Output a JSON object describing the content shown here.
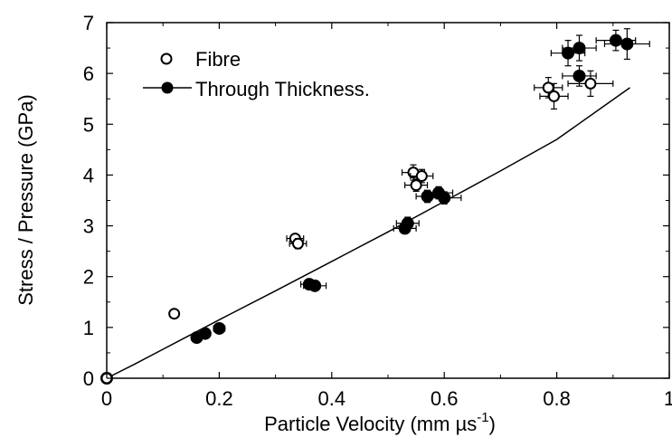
{
  "chart_data": {
    "type": "scatter",
    "xlabel": "Particle Velocity (mm µs",
    "xlabel_sup": "-1",
    "xlabel_close": ")",
    "ylabel": "Stress / Pressure (GPa)",
    "xlim": [
      0,
      1
    ],
    "ylim": [
      0,
      7
    ],
    "xticks": [
      0,
      0.2,
      0.4,
      0.6,
      0.8,
      1
    ],
    "xtick_labels": [
      "0",
      "0.2",
      "0.4",
      "0.6",
      "0.8",
      "1"
    ],
    "yticks": [
      0,
      1,
      2,
      3,
      4,
      5,
      6,
      7
    ],
    "ytick_labels": [
      "0",
      "1",
      "2",
      "3",
      "4",
      "5",
      "6",
      "7"
    ],
    "grid": false,
    "legend_position": "top-left",
    "series": [
      {
        "name": "Fibre",
        "marker": "open-circle",
        "points": [
          {
            "x": 0.0,
            "y": 0.0,
            "xerr": 0,
            "yerr": 0
          },
          {
            "x": 0.12,
            "y": 1.27,
            "xerr": 0,
            "yerr": 0
          },
          {
            "x": 0.335,
            "y": 2.75,
            "xerr": 0.015,
            "yerr": 0.07
          },
          {
            "x": 0.34,
            "y": 2.65,
            "xerr": 0.015,
            "yerr": 0.1
          },
          {
            "x": 0.545,
            "y": 4.05,
            "xerr": 0.02,
            "yerr": 0.15
          },
          {
            "x": 0.56,
            "y": 3.98,
            "xerr": 0.02,
            "yerr": 0.13
          },
          {
            "x": 0.55,
            "y": 3.8,
            "xerr": 0.02,
            "yerr": 0.12
          },
          {
            "x": 0.785,
            "y": 5.72,
            "xerr": 0.025,
            "yerr": 0.2
          },
          {
            "x": 0.795,
            "y": 5.55,
            "xerr": 0.025,
            "yerr": 0.25
          },
          {
            "x": 0.86,
            "y": 5.8,
            "xerr": 0.04,
            "yerr": 0.25
          }
        ]
      },
      {
        "name": "Through Thickness.",
        "marker": "filled-circle",
        "line": [
          [
            0,
            0
          ],
          [
            0.05,
            0.28
          ],
          [
            0.1,
            0.57
          ],
          [
            0.2,
            1.15
          ],
          [
            0.3,
            1.72
          ],
          [
            0.4,
            2.3
          ],
          [
            0.5,
            2.88
          ],
          [
            0.6,
            3.48
          ],
          [
            0.7,
            4.08
          ],
          [
            0.8,
            4.7
          ],
          [
            0.93,
            5.72
          ]
        ],
        "points": [
          {
            "x": 0.0,
            "y": 0.0,
            "xerr": 0,
            "yerr": 0
          },
          {
            "x": 0.16,
            "y": 0.8,
            "xerr": 0,
            "yerr": 0
          },
          {
            "x": 0.175,
            "y": 0.88,
            "xerr": 0,
            "yerr": 0
          },
          {
            "x": 0.2,
            "y": 0.98,
            "xerr": 0.01,
            "yerr": 0.05
          },
          {
            "x": 0.36,
            "y": 1.85,
            "xerr": 0.015,
            "yerr": 0.07
          },
          {
            "x": 0.37,
            "y": 1.82,
            "xerr": 0.02,
            "yerr": 0.07
          },
          {
            "x": 0.53,
            "y": 2.95,
            "xerr": 0.02,
            "yerr": 0.1
          },
          {
            "x": 0.535,
            "y": 3.05,
            "xerr": 0.02,
            "yerr": 0.12
          },
          {
            "x": 0.57,
            "y": 3.58,
            "xerr": 0.02,
            "yerr": 0.12
          },
          {
            "x": 0.59,
            "y": 3.65,
            "xerr": 0.025,
            "yerr": 0.12
          },
          {
            "x": 0.6,
            "y": 3.55,
            "xerr": 0.03,
            "yerr": 0.12
          },
          {
            "x": 0.82,
            "y": 6.4,
            "xerr": 0.03,
            "yerr": 0.25
          },
          {
            "x": 0.84,
            "y": 6.5,
            "xerr": 0.03,
            "yerr": 0.25
          },
          {
            "x": 0.84,
            "y": 5.95,
            "xerr": 0.03,
            "yerr": 0.2
          },
          {
            "x": 0.905,
            "y": 6.65,
            "xerr": 0.035,
            "yerr": 0.2
          },
          {
            "x": 0.925,
            "y": 6.58,
            "xerr": 0.04,
            "yerr": 0.3
          }
        ]
      }
    ]
  }
}
